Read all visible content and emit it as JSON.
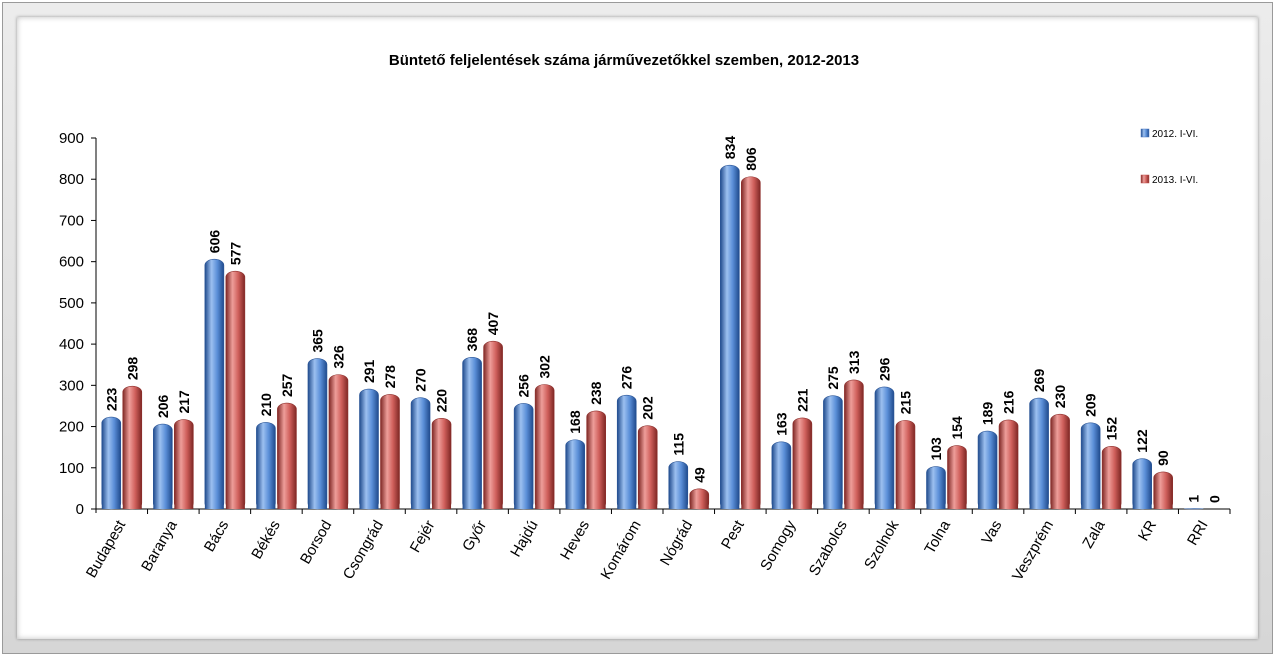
{
  "chart_data": {
    "type": "bar",
    "title": "Büntető feljelentések száma járművezetőkkel szemben, 2012-2013",
    "categories": [
      "Budapest",
      "Baranya",
      "Bács",
      "Békés",
      "Borsod",
      "Csongrád",
      "Fejér",
      "Győr",
      "Hajdú",
      "Heves",
      "Komárom",
      "Nógrád",
      "Pest",
      "Somogy",
      "Szabolcs",
      "Szolnok",
      "Tolna",
      "Vas",
      "Veszprém",
      "Zala",
      "KR",
      "RRI"
    ],
    "series": [
      {
        "name": "2012. I-VI.",
        "color": "#4a78c2",
        "values": [
          223,
          206,
          606,
          210,
          365,
          291,
          270,
          368,
          256,
          168,
          276,
          115,
          834,
          163,
          275,
          296,
          103,
          189,
          269,
          209,
          122,
          1
        ]
      },
      {
        "name": "2013. I-VI.",
        "color": "#c0504d",
        "values": [
          298,
          217,
          577,
          257,
          326,
          278,
          220,
          407,
          302,
          238,
          202,
          49,
          806,
          221,
          313,
          215,
          154,
          216,
          230,
          152,
          90,
          0
        ]
      }
    ],
    "yticks": [
      0,
      100,
      200,
      300,
      400,
      500,
      600,
      700,
      800,
      900
    ],
    "ylim": [
      0,
      900
    ],
    "grid": false,
    "legend": "top-right"
  }
}
